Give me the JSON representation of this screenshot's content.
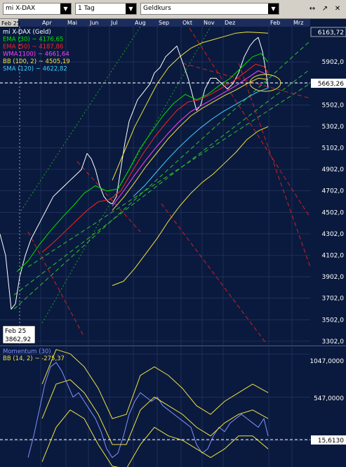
{
  "toolbar": {
    "instrument": "mi X-DAX",
    "period": "1 Tag",
    "price_type": "Geldkurs",
    "window_buttons": [
      "↔",
      "↗",
      "✕"
    ]
  },
  "colors": {
    "background": "#0a1a3e",
    "panel_border": "#4a5a8a",
    "grid": "#2a3a6a",
    "price": "#ffffff",
    "ema30": "#00e000",
    "ema50": "#ff2020",
    "wma100": "#ff40ff",
    "bb": "#f0e040",
    "sma120": "#40d0ff",
    "trend_up": "#30c030",
    "trend_down": "#d02020",
    "momentum": "#8090ff"
  },
  "chart_data": [
    {
      "type": "line",
      "title": "mi X-DAX (Geld)",
      "x_ticks": [
        "Feb 25",
        "Apr",
        "Mai",
        "Jun",
        "Jul",
        "Aug",
        "Sep",
        "Okt",
        "Nov",
        "Dez",
        "Feb",
        "Mrz"
      ],
      "y_ticks": [
        3302.0,
        3502.0,
        3702.0,
        3902.0,
        4102.0,
        4302.0,
        4502.0,
        4702.0,
        4902.0,
        5102.0,
        5302.0,
        5502.0,
        5702.0,
        5902.0
      ],
      "ylim": [
        3262,
        6230
      ],
      "price_labels": {
        "high": "6163,72",
        "current": "5663,26"
      },
      "crosshair": {
        "date": "Feb 25",
        "value": "3862,92"
      },
      "legend": [
        {
          "label": "mi X-DAX (Geld)",
          "color": "#ffffff"
        },
        {
          "label": "EMA (30) ~ 4176,65",
          "color": "#00e000"
        },
        {
          "label": "EMA (50) ~ 4187,86",
          "color": "#ff2020"
        },
        {
          "label": "WMA (100) ~ 4661,64",
          "color": "#ff40ff"
        },
        {
          "label": "BB (100, 2) ~ 4505,19",
          "color": "#f0e040"
        },
        {
          "label": "SMA (120) ~ 4622,82",
          "color": "#40d0ff"
        }
      ],
      "series": [
        {
          "name": "mi X-DAX (Geld)",
          "x": [
            0,
            8,
            16,
            22,
            28,
            36,
            44,
            52,
            60,
            68,
            76,
            84,
            92,
            100,
            108,
            116,
            124,
            130,
            136,
            142,
            148,
            154,
            160,
            166,
            172,
            178,
            184,
            190,
            196,
            202,
            208,
            214,
            220,
            228,
            236,
            244,
            252,
            260,
            268,
            274,
            280,
            286,
            292,
            300,
            308,
            316,
            324,
            332,
            340,
            348,
            356,
            362,
            368,
            374,
            378,
            382
          ],
          "y": [
            4300,
            4100,
            3600,
            3650,
            3900,
            4100,
            4250,
            4350,
            4450,
            4550,
            4650,
            4700,
            4750,
            4800,
            4850,
            4900,
            5050,
            5000,
            4900,
            4750,
            4650,
            4600,
            4580,
            4650,
            4900,
            5150,
            5350,
            5450,
            5550,
            5600,
            5650,
            5700,
            5800,
            5850,
            5950,
            6000,
            6050,
            5900,
            5750,
            5600,
            5450,
            5500,
            5650,
            5750,
            5750,
            5700,
            5650,
            5700,
            5800,
            5950,
            6050,
            6100,
            6130,
            6000,
            5850,
            5663
          ]
        },
        {
          "name": "EMA (30)",
          "x": [
            24,
            40,
            56,
            72,
            88,
            104,
            120,
            136,
            152,
            168,
            184,
            200,
            216,
            232,
            248,
            264,
            280,
            296,
            312,
            328,
            344,
            360,
            372,
            382
          ],
          "y": [
            3950,
            4050,
            4200,
            4330,
            4450,
            4560,
            4680,
            4750,
            4700,
            4720,
            4900,
            5100,
            5250,
            5400,
            5520,
            5600,
            5550,
            5600,
            5680,
            5750,
            5850,
            5950,
            5980,
            5900
          ]
        },
        {
          "name": "EMA (50)",
          "x": [
            60,
            76,
            92,
            108,
            124,
            140,
            156,
            172,
            188,
            204,
            220,
            236,
            252,
            268,
            284,
            300,
            316,
            332,
            348,
            364,
            376,
            382
          ],
          "y": [
            4130,
            4220,
            4320,
            4420,
            4520,
            4600,
            4620,
            4700,
            4880,
            5050,
            5200,
            5330,
            5450,
            5530,
            5550,
            5600,
            5660,
            5720,
            5800,
            5880,
            5860,
            5800
          ]
        },
        {
          "name": "WMA (100)",
          "x": [
            160,
            176,
            192,
            208,
            224,
            240,
            256,
            272,
            288,
            304,
            320,
            336,
            352,
            368,
            382
          ],
          "y": [
            4560,
            4700,
            4850,
            4990,
            5120,
            5240,
            5350,
            5440,
            5500,
            5560,
            5620,
            5680,
            5750,
            5820,
            5780
          ]
        },
        {
          "name": "BB (100, 2) Oberes Band",
          "x": [
            160,
            176,
            192,
            208,
            224,
            240,
            256,
            272,
            288,
            304,
            320,
            336,
            352,
            368,
            382
          ],
          "y": [
            4800,
            5050,
            5300,
            5500,
            5700,
            5850,
            5950,
            6030,
            6080,
            6110,
            6140,
            6170,
            6180,
            6175,
            6170
          ]
        },
        {
          "name": "BB (100, 2) Mittellinie",
          "x": [
            160,
            176,
            192,
            208,
            224,
            240,
            256,
            272,
            288,
            304,
            320,
            336,
            352,
            368,
            382
          ],
          "y": [
            4520,
            4640,
            4780,
            4930,
            5060,
            5190,
            5300,
            5400,
            5470,
            5530,
            5590,
            5640,
            5700,
            5750,
            5740
          ]
        },
        {
          "name": "BB (100, 2) Unteres Band",
          "x": [
            160,
            176,
            192,
            208,
            224,
            240,
            256,
            272,
            288,
            304,
            320,
            336,
            352,
            368,
            382
          ],
          "y": [
            3820,
            3860,
            3980,
            4120,
            4260,
            4420,
            4560,
            4680,
            4780,
            4860,
            4960,
            5060,
            5180,
            5260,
            5300
          ]
        },
        {
          "name": "SMA (120)",
          "x": [
            190,
            206,
            222,
            238,
            254,
            270,
            286,
            302,
            318,
            334,
            350,
            366,
            382
          ],
          "y": [
            4650,
            4750,
            4870,
            4990,
            5100,
            5200,
            5290,
            5370,
            5440,
            5500,
            5560,
            5620,
            5660
          ]
        }
      ]
    },
    {
      "type": "line",
      "title": "Momentum (30)",
      "y_ticks": [
        "1047,0000",
        "547,0000"
      ],
      "current": "15,6130",
      "ylim": [
        -260,
        1130
      ],
      "legend": [
        {
          "label": "Momentum (30)",
          "color": "#8090ff"
        },
        {
          "label": "BB (14, 2) ~ -275,37",
          "color": "#f0e040"
        }
      ],
      "series": [
        {
          "name": "Momentum (30)",
          "x": [
            40,
            48,
            56,
            64,
            72,
            80,
            88,
            96,
            104,
            112,
            120,
            128,
            136,
            144,
            152,
            160,
            168,
            176,
            184,
            192,
            200,
            208,
            216,
            224,
            232,
            240,
            248,
            256,
            264,
            272,
            280,
            288,
            296,
            304,
            312,
            320,
            328,
            336,
            344,
            352,
            360,
            368,
            376,
            382
          ],
          "y": [
            -150,
            100,
            400,
            700,
            900,
            950,
            850,
            700,
            550,
            600,
            500,
            400,
            300,
            150,
            -50,
            -150,
            -100,
            100,
            350,
            500,
            600,
            550,
            500,
            550,
            450,
            400,
            350,
            300,
            250,
            200,
            0,
            -100,
            -50,
            100,
            200,
            150,
            250,
            300,
            350,
            300,
            250,
            200,
            300,
            100
          ]
        },
        {
          "name": "BB (14, 2) oben",
          "x": [
            60,
            80,
            100,
            120,
            140,
            160,
            180,
            200,
            220,
            240,
            260,
            280,
            300,
            320,
            340,
            360,
            382
          ],
          "y": [
            700,
            1100,
            1050,
            900,
            650,
            300,
            350,
            800,
            900,
            800,
            650,
            450,
            350,
            500,
            600,
            700,
            600
          ]
        },
        {
          "name": "BB (14, 2) mitte",
          "x": [
            60,
            80,
            100,
            120,
            140,
            160,
            180,
            200,
            220,
            240,
            260,
            280,
            300,
            320,
            340,
            360,
            382
          ],
          "y": [
            300,
            700,
            750,
            600,
            350,
            0,
            0,
            400,
            550,
            450,
            350,
            200,
            100,
            250,
            350,
            400,
            300
          ]
        },
        {
          "name": "BB (14, 2) unten",
          "x": [
            60,
            80,
            100,
            120,
            140,
            160,
            180,
            200,
            220,
            240,
            260,
            280,
            300,
            320,
            340,
            360,
            382
          ],
          "y": [
            -200,
            200,
            400,
            300,
            0,
            -250,
            -280,
            0,
            200,
            100,
            50,
            -50,
            -150,
            -50,
            100,
            100,
            -50
          ]
        }
      ]
    }
  ]
}
